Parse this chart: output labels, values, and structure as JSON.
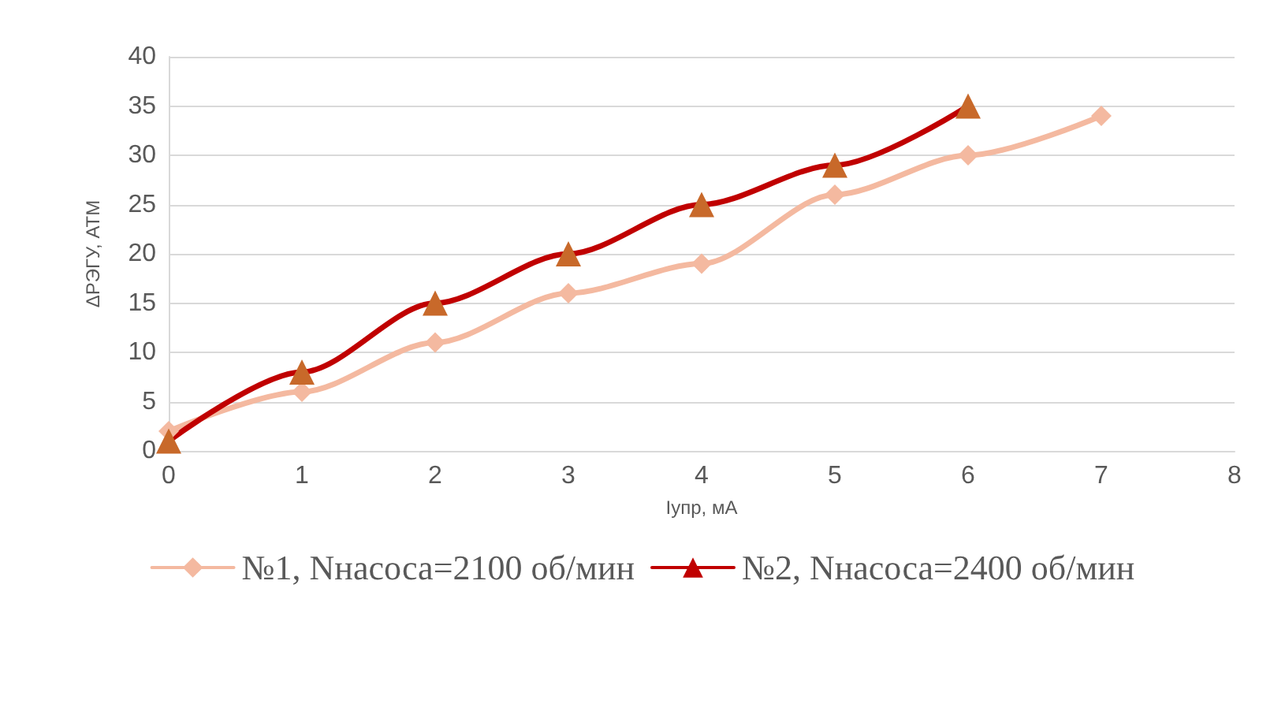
{
  "chart_data": {
    "type": "line",
    "xlabel": "Iупр, мА",
    "ylabel": "ΔРЭГУ, АТМ",
    "xlim": [
      0,
      8
    ],
    "xticks": [
      0,
      1,
      2,
      3,
      4,
      5,
      6,
      7,
      8
    ],
    "ylim": [
      0,
      40
    ],
    "yticks": [
      0,
      5,
      10,
      15,
      20,
      25,
      30,
      35,
      40
    ],
    "grid": "y",
    "legend": "bottom",
    "series": [
      {
        "name": "№1, Nнасоса=2100 об/мин",
        "color": "#f4b9a0",
        "marker": "diamond",
        "x": [
          0,
          1,
          2,
          3,
          4,
          5,
          6,
          7
        ],
        "values": [
          2,
          6,
          11,
          16,
          19,
          26,
          30,
          34
        ]
      },
      {
        "name": "№2, Nнасоса=2400 об/мин",
        "color": "#c00000",
        "colors": [
          "#c8692a",
          "#c8692a",
          "#c8692a",
          "#c8692a",
          "#c8692a",
          "#c8692a",
          "#c8692a"
        ],
        "marker": "triangle",
        "x": [
          0,
          1,
          2,
          3,
          4,
          5,
          6
        ],
        "values": [
          1,
          8,
          15,
          20,
          25,
          29,
          35
        ]
      }
    ]
  }
}
